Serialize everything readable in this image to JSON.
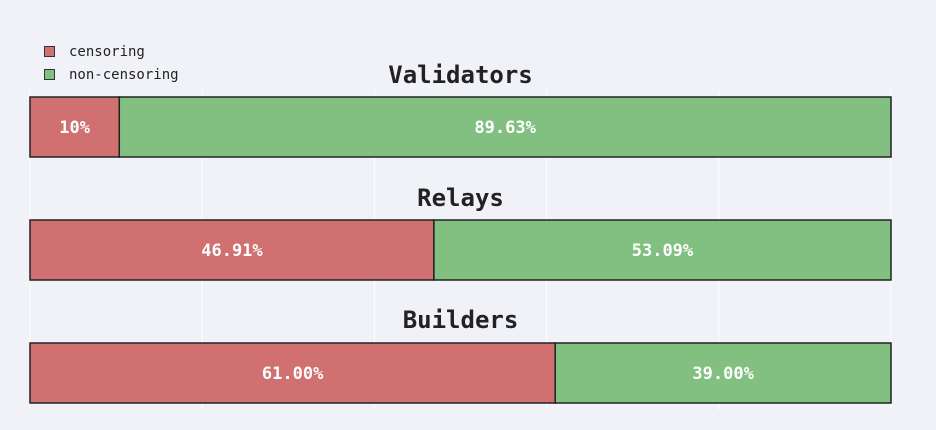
{
  "chart_data": {
    "type": "bar",
    "orientation": "horizontal-stacked",
    "legend_position": "top-left",
    "grid": true,
    "colors": {
      "censoring": "#d07070",
      "non_censoring": "#82c082",
      "background": "#f1f2f7",
      "border": "#222222"
    },
    "legend": [
      {
        "label": "censoring",
        "color": "#d07070"
      },
      {
        "label": "non-censoring",
        "color": "#82c082"
      }
    ],
    "panels": [
      {
        "title": "Validators",
        "series": [
          {
            "name": "censoring",
            "value": 10.37,
            "label": "10%"
          },
          {
            "name": "non-censoring",
            "value": 89.63,
            "label": "89.63%"
          }
        ]
      },
      {
        "title": "Relays",
        "series": [
          {
            "name": "censoring",
            "value": 46.91,
            "label": "46.91%"
          },
          {
            "name": "non-censoring",
            "value": 53.09,
            "label": "53.09%"
          }
        ]
      },
      {
        "title": "Builders",
        "series": [
          {
            "name": "censoring",
            "value": 61.0,
            "label": "61.00%"
          },
          {
            "name": "non-censoring",
            "value": 39.0,
            "label": "39.00%"
          }
        ]
      }
    ],
    "xlim": [
      0,
      100
    ]
  }
}
